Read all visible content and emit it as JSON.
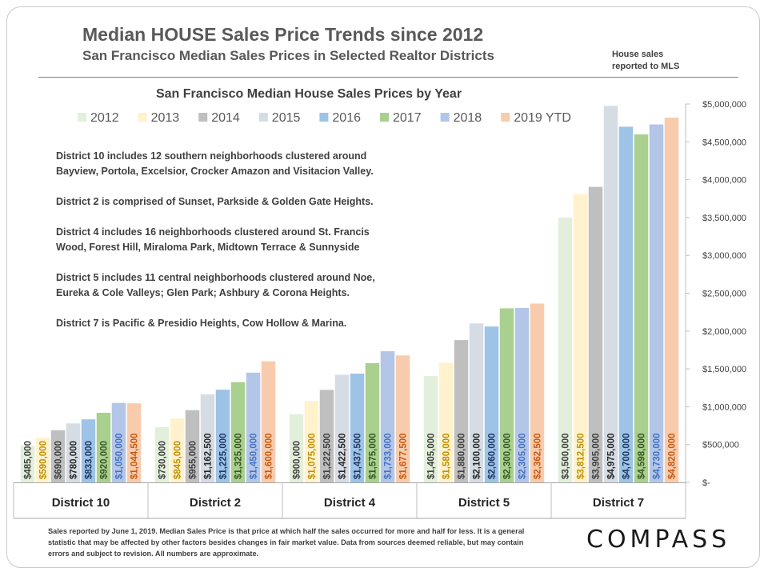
{
  "header": {
    "title": "Median HOUSE Sales Price Trends since 2012",
    "subtitle": "San Francisco Median Sales Prices in Selected Realtor Districts",
    "mls_note_line1": "House sales",
    "mls_note_line2": "reported to MLS"
  },
  "notes": [
    [
      "District 10 includes 12 southern neighborhoods clustered around",
      "Bayview, Portola, Excelsior, Crocker Amazon and Visitacion Valley."
    ],
    [
      "District 2 is comprised of Sunset, Parkside & Golden Gate Heights."
    ],
    [
      "District 4 includes 16 neighborhoods clustered around St. Francis",
      "Wood, Forest Hill, Miraloma Park, Midtown Terrace & Sunnyside"
    ],
    [
      "District 5 includes 11 central neighborhoods clustered around Noe,",
      "Eureka & Cole Valleys; Glen Park; Ashbury & Corona Heights."
    ],
    [
      "District 7 is Pacific & Presidio Heights, Cow Hollow & Marina."
    ]
  ],
  "footnote": "Sales reported by June 1, 2019. Median Sales Price is that price at which half the sales occurred for more and half for less. It is a general statistic that may be affected by other factors besides changes in fair market value. Data from sources deemed reliable, but may contain errors and subject to revision.  All numbers are approximate.",
  "logo": "COMPASS",
  "chart_data": {
    "type": "bar",
    "title": "San Francisco Median House Sales Prices by Year",
    "categories": [
      "District 10",
      "District 2",
      "District 4",
      "District 5",
      "District 7"
    ],
    "series": [
      {
        "name": "2012",
        "color": "#e2efda",
        "label_color": "#404040",
        "values": [
          485000,
          730000,
          900000,
          1405000,
          3500000
        ],
        "labels": [
          "$485,000",
          "$730,000",
          "$900,000",
          "$1,405,000",
          "$3,500,000"
        ]
      },
      {
        "name": "2013",
        "color": "#fff2cc",
        "label_color": "#bf8f00",
        "values": [
          590000,
          845000,
          1075000,
          1580000,
          3812500
        ],
        "labels": [
          "$590,000",
          "$845,000",
          "$1,075,000",
          "$1,580,000",
          "$3,812,500"
        ]
      },
      {
        "name": "2014",
        "color": "#bfbfbf",
        "label_color": "#404040",
        "values": [
          690000,
          955000,
          1222500,
          1880000,
          3905000
        ],
        "labels": [
          "$690,000",
          "$955,000",
          "$1,222,500",
          "$1,880,000",
          "$3,905,000"
        ]
      },
      {
        "name": "2015",
        "color": "#d6dce4",
        "label_color": "#262626",
        "values": [
          780000,
          1162500,
          1422500,
          2100000,
          4975000
        ],
        "labels": [
          "$780,000",
          "$1,162,500",
          "$1,422,500",
          "$2,100,000",
          "$4,975,000"
        ]
      },
      {
        "name": "2016",
        "color": "#9dc3e6",
        "label_color": "#1f3864",
        "values": [
          833000,
          1225000,
          1437500,
          2060000,
          4700000
        ],
        "labels": [
          "$833,000",
          "$1,225,000",
          "$1,437,500",
          "$2,060,000",
          "$4,700,000"
        ]
      },
      {
        "name": "2017",
        "color": "#a9d08e",
        "label_color": "#375623",
        "values": [
          920000,
          1325000,
          1575000,
          2300000,
          4598000
        ],
        "labels": [
          "$920,000",
          "$1,325,000",
          "$1,575,000",
          "$2,300,000",
          "$4,598,000"
        ]
      },
      {
        "name": "2018",
        "color": "#b4c6e7",
        "label_color": "#4472c4",
        "values": [
          1050000,
          1450000,
          1733000,
          2305000,
          4730000
        ],
        "labels": [
          "$1,050,000",
          "$1,450,000",
          "$1,733,000",
          "$2,305,000",
          "$4,730,000"
        ]
      },
      {
        "name": "2019 YTD",
        "color": "#f8cbad",
        "label_color": "#c55a11",
        "values": [
          1044500,
          1600000,
          1677500,
          2362500,
          4820000
        ],
        "labels": [
          "$1,044,500",
          "$1,600,000",
          "$1,677,500",
          "$2,362,500",
          "$4,820,000"
        ]
      }
    ],
    "ylim": [
      0,
      5000000
    ],
    "yticks": [
      0,
      500000,
      1000000,
      1500000,
      2000000,
      2500000,
      3000000,
      3500000,
      4000000,
      4500000,
      5000000
    ],
    "ytick_labels": [
      "$-",
      "$500,000",
      "$1,000,000",
      "$1,500,000",
      "$2,000,000",
      "$2,500,000",
      "$3,000,000",
      "$3,500,000",
      "$4,000,000",
      "$4,500,000",
      "$5,000,000"
    ],
    "y_axis_side": "right",
    "legend_position": "top",
    "grid": false
  }
}
